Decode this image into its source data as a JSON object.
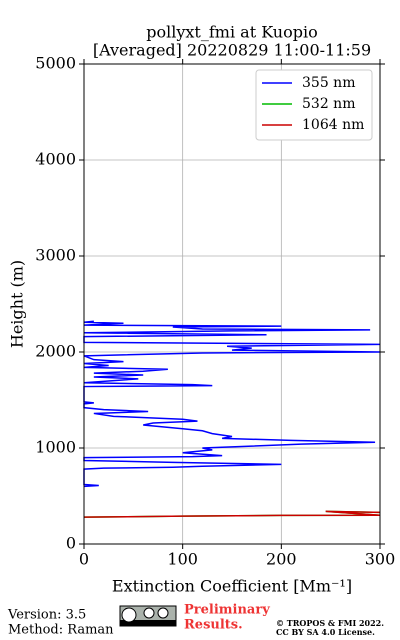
{
  "chart_data": {
    "type": "profile",
    "title": [
      "pollyxt_fmi at Kuopio",
      "[Averaged] 20220829 11:00-11:59"
    ],
    "x_label": "Extinction Coefficient [Mm⁻¹]",
    "y_label": "Height (m)",
    "xlim": [
      0,
      300
    ],
    "xticks": [
      0,
      100,
      200,
      300
    ],
    "ylim": [
      0,
      5000
    ],
    "yticks": [
      0,
      1000,
      2000,
      3000,
      4000,
      5000
    ],
    "grid": true,
    "legend": "upper right",
    "series": [
      {
        "name": "355 nm",
        "color": "#0000ff",
        "x": [
          0,
          15,
          0,
          0,
          20,
          90,
          120,
          200,
          90,
          0,
          0,
          110,
          140,
          100,
          130,
          120,
          170,
          220,
          295,
          210,
          140,
          150,
          130,
          120,
          100,
          80,
          60,
          70,
          115,
          100,
          30,
          10,
          65,
          20,
          0,
          0,
          10,
          0,
          0,
          130,
          110,
          0,
          55,
          10,
          60,
          10,
          60,
          85,
          0,
          25,
          0,
          40,
          10,
          0,
          120,
          300,
          150,
          170,
          145,
          300,
          0,
          0,
          0,
          185,
          0,
          150,
          290,
          120,
          90,
          200,
          0,
          40,
          0,
          10
        ],
        "values": [
          600,
          610,
          620,
          780,
          790,
          800,
          810,
          830,
          850,
          870,
          900,
          910,
          920,
          950,
          980,
          1000,
          1020,
          1040,
          1060,
          1080,
          1100,
          1120,
          1150,
          1180,
          1200,
          1220,
          1240,
          1260,
          1280,
          1300,
          1330,
          1360,
          1380,
          1400,
          1420,
          1460,
          1470,
          1480,
          1640,
          1650,
          1660,
          1680,
          1720,
          1740,
          1760,
          1780,
          1800,
          1820,
          1840,
          1860,
          1880,
          1900,
          1920,
          1960,
          1990,
          2000,
          2020,
          2040,
          2060,
          2080,
          2100,
          2120,
          2160,
          2180,
          2200,
          2220,
          2230,
          2240,
          2260,
          2270,
          2280,
          2300,
          2310,
          2320
        ]
      },
      {
        "name": "532 nm",
        "color": "#00bb00",
        "x": [
          0,
          100,
          200,
          300,
          245,
          300
        ],
        "values": [
          280,
          290,
          298,
          300,
          340,
          330
        ]
      },
      {
        "name": "1064 nm",
        "color": "#cc0000",
        "x": [
          0,
          100,
          200,
          300,
          245,
          300
        ],
        "values": [
          280,
          290,
          298,
          300,
          340,
          330
        ]
      }
    ]
  },
  "footer": {
    "version": "Version: 3.5",
    "method": "Method: Raman",
    "preliminary": [
      "Preliminary",
      "Results."
    ],
    "copyright": [
      "© TROPOS & FMI 2022.",
      "CC BY SA 4.0 License."
    ]
  }
}
